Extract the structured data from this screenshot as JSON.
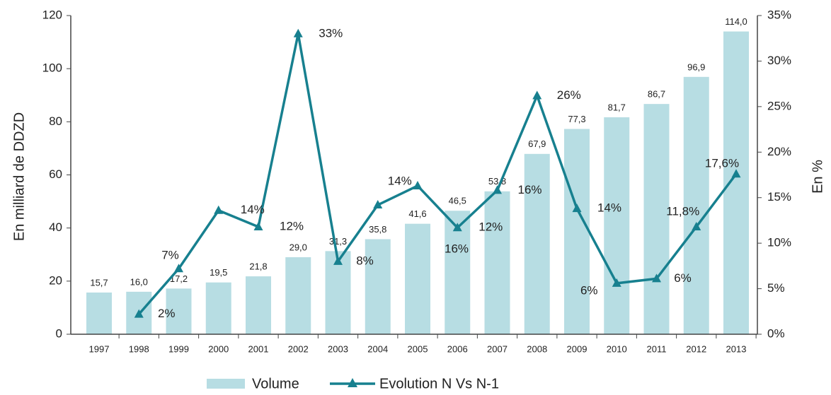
{
  "chart_data": {
    "type": "bar_line",
    "y_label": "En milliard de DDZD",
    "y2_label": "En %",
    "categories": [
      "1997",
      "1998",
      "1999",
      "2000",
      "2001",
      "2002",
      "2003",
      "2004",
      "2005",
      "2006",
      "2007",
      "2008",
      "2009",
      "2010",
      "2011",
      "2012",
      "2013"
    ],
    "series": [
      {
        "name": "Volume",
        "type": "bar",
        "color": "#b7dde3",
        "values": [
          15.7,
          16.0,
          17.2,
          19.5,
          21.8,
          29.0,
          31.3,
          35.8,
          41.6,
          46.5,
          53.8,
          67.9,
          77.3,
          81.7,
          86.7,
          96.9,
          114.0
        ],
        "value_labels": [
          "15,7",
          "16,0",
          "17,2",
          "19,5",
          "21,8",
          "29,0",
          "31,3",
          "35,8",
          "41,6",
          "46,5",
          "53,8",
          "67,9",
          "77,3",
          "81,7",
          "86,7",
          "96,9",
          "114,0"
        ]
      },
      {
        "name": "Evolution N Vs N-1",
        "type": "line",
        "axis": "y2",
        "color": "#17808f",
        "values": [
          null,
          2.2,
          7.2,
          13.6,
          11.8,
          33,
          8,
          14.2,
          16.3,
          11.7,
          15.8,
          26.2,
          13.8,
          5.6,
          6.1,
          11.8,
          17.6
        ],
        "value_labels": [
          null,
          "2%",
          "7%",
          "14%",
          "12%",
          "33%",
          "8%",
          "14%",
          "16%",
          "12%",
          "16%",
          "26%",
          "14%",
          "6%",
          "6%",
          "11,8%",
          "17,6%"
        ]
      }
    ],
    "ylim": [
      0,
      120
    ],
    "yticks": [
      0,
      20,
      40,
      60,
      80,
      100,
      120
    ],
    "y2lim": [
      0,
      35
    ],
    "y2ticks": [
      {
        "value": 0,
        "label": "0%"
      },
      {
        "value": 5,
        "label": "5%"
      },
      {
        "value": 10,
        "label": "10%"
      },
      {
        "value": 15,
        "label": "15%"
      },
      {
        "value": 20,
        "label": "20%"
      },
      {
        "value": 25,
        "label": "25%"
      },
      {
        "value": 30,
        "label": "30%"
      },
      {
        "value": 35,
        "label": "35%"
      }
    ],
    "legend": "bottom"
  }
}
